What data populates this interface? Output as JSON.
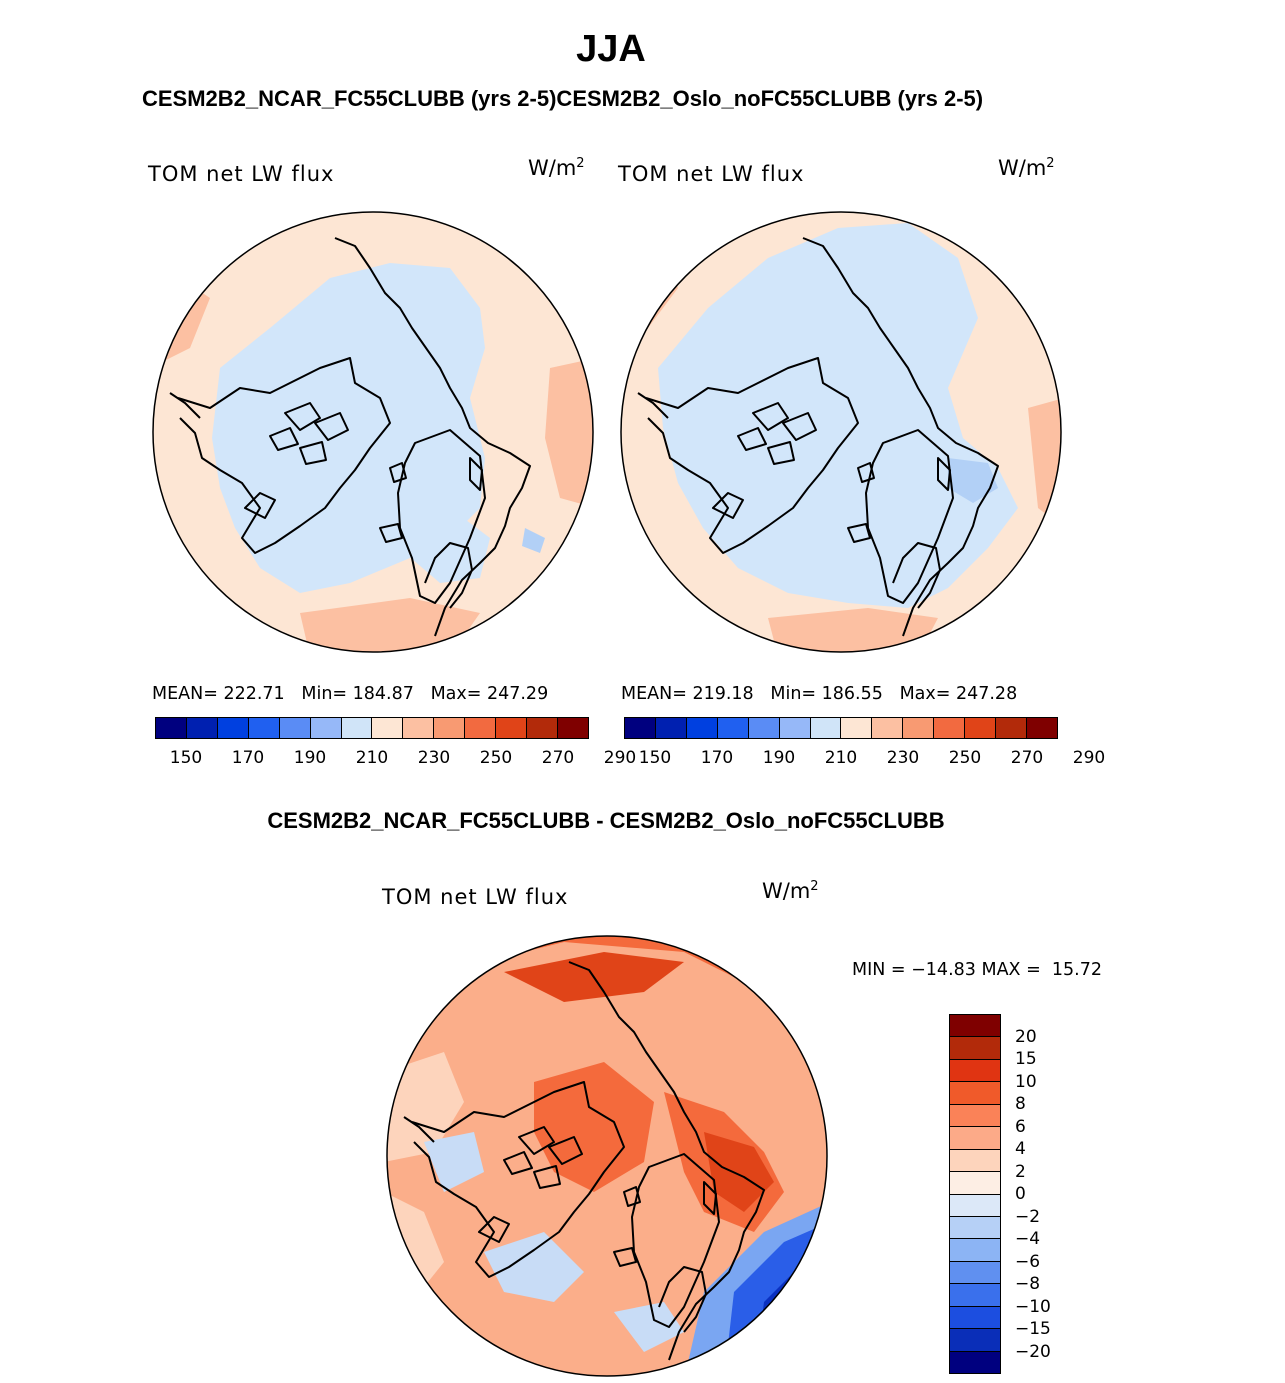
{
  "header": {
    "season": "JJA",
    "cases_title": "CESM2B2_NCAR_FC55CLUBB (yrs 2-5)CESM2B2_Oslo_noFC55CLUBB (yrs 2-5)",
    "diff_title": "CESM2B2_NCAR_FC55CLUBB - CESM2B2_Oslo_noFC55CLUBB"
  },
  "panels": [
    {
      "variable": "TOM net LW flux",
      "unit": "W/m",
      "unit_exp": "2",
      "stats": "MEAN= 222.71   Min= 184.87   Max= 247.29"
    },
    {
      "variable": "TOM net LW flux",
      "unit": "W/m",
      "unit_exp": "2",
      "stats": "MEAN= 219.18   Min= 186.55   Max= 247.28"
    }
  ],
  "field_colorbar": {
    "colors": [
      "#00007f",
      "#0020b0",
      "#0040e0",
      "#2060f0",
      "#5a8cf5",
      "#96b8f8",
      "#d0e4f8",
      "#fde6d4",
      "#fcc0a2",
      "#f89a72",
      "#f26a40",
      "#e04418",
      "#b22a0a",
      "#7f0000"
    ],
    "labels": [
      "150",
      "170",
      "190",
      "210",
      "230",
      "250",
      "270",
      "290"
    ]
  },
  "diff_panel": {
    "variable": "TOM net LW flux",
    "unit": "W/m",
    "unit_exp": "2",
    "minmax": "MIN = −14.83 MAX =  15.72"
  },
  "diff_colorbar": {
    "colors": [
      "#7f0000",
      "#b22a0a",
      "#e03412",
      "#f05a2a",
      "#fa8258",
      "#fcaa88",
      "#fdd4bc",
      "#fdeee4",
      "#dce8f8",
      "#b6d0f6",
      "#8cb4f4",
      "#6090f0",
      "#3a70ec",
      "#1c4ee0",
      "#0a2eb8",
      "#00007f"
    ],
    "labels": [
      "20",
      "15",
      "10",
      "8",
      "6",
      "4",
      "2",
      "0",
      "−2",
      "−4",
      "−6",
      "−8",
      "−10",
      "−15",
      "−20"
    ]
  },
  "map_colors": {
    "blue": "#d2e6fa",
    "peach": "#fde6d4",
    "salmon": "#fcc0a2",
    "midblue": "#b2d0f6",
    "d_light": "#fdd4bc",
    "d_salmon": "#fbae8a",
    "d_orange": "#f46a3c",
    "d_red": "#e04418",
    "d_pale_blue": "#c8dcf6",
    "d_blue1": "#7aa6f2",
    "d_blue2": "#2a5ee8",
    "d_blue3": "#0a30c0"
  }
}
